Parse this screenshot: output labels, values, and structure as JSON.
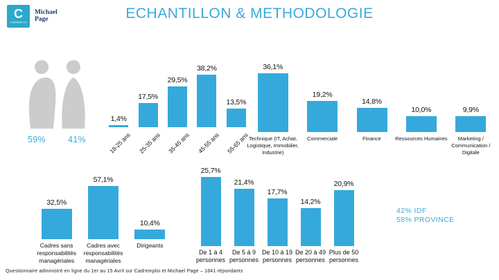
{
  "colors": {
    "accent": "#3BA9DB",
    "bar": "#36A9DC",
    "logo_teal": "#2BA8CB",
    "brand_navy": "#1E3C6E",
    "silhouette": "#CCCCCC"
  },
  "header": {
    "title": "ECHANTILLON & METHODOLOGIE",
    "logo_letter": "C",
    "logo_caption": "CADREMPLOI",
    "brand_line1": "Michael",
    "brand_line2": "Page"
  },
  "gender": {
    "male": "59%",
    "female": "41%"
  },
  "region": {
    "idf": "42% IDF",
    "province": "58% PROVINCE"
  },
  "footnote": "Questionnaire administré en ligne du 1er au 15 Avril sur Cadremploi et Michael Page – 1641 répondants",
  "chart_data": [
    {
      "type": "bar",
      "name": "age",
      "categories": [
        "18-25 ans",
        "25-35 ans",
        "35-45 ans",
        "45-55 ans",
        "55-65 ans"
      ],
      "values": [
        1.4,
        17.5,
        29.5,
        38.2,
        13.5
      ],
      "labels": [
        "1,4%",
        "17,5%",
        "29,5%",
        "38,2%",
        "13,5%"
      ]
    },
    {
      "type": "bar",
      "name": "fonction",
      "categories": [
        "Technique (IT, Achat, Logistique, Immobilier, Industrie)",
        "Commerciale",
        "Finance",
        "Ressources Humaines",
        "Marketing / Communication / Digitale"
      ],
      "values": [
        36.1,
        19.2,
        14.8,
        10.0,
        9.9
      ],
      "labels": [
        "36,1%",
        "19,2%",
        "14,8%",
        "10,0%",
        "9,9%"
      ]
    },
    {
      "type": "bar",
      "name": "statut",
      "categories": [
        "Cadres sans responsabilités managériales",
        "Cadres avec responsabilités managériales",
        "Dirigeants"
      ],
      "values": [
        32.5,
        57.1,
        10.4
      ],
      "labels": [
        "32,5%",
        "57,1%",
        "10,4%"
      ]
    },
    {
      "type": "bar",
      "name": "taille_equipe",
      "categories": [
        "De 1 à 4 personnes",
        "De 5 à 9 personnes",
        "De 10 à 19 personnes",
        "De 20 à 49 personnes",
        "Plus de 50 personnes"
      ],
      "values": [
        25.7,
        21.4,
        17.7,
        14.2,
        20.9
      ],
      "labels": [
        "25,7%",
        "21,4%",
        "17,7%",
        "14,2%",
        "20,9%"
      ]
    }
  ]
}
